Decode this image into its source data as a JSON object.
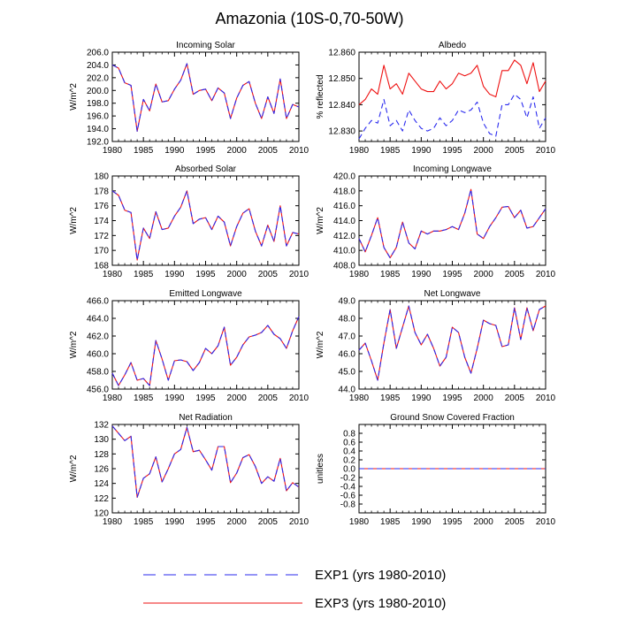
{
  "figure": {
    "title": "Amazonia (10S-0,70-50W)",
    "legend": [
      {
        "label": "EXP1 (yrs 1980-2010)",
        "color": "#2a2aee",
        "style": "dashed"
      },
      {
        "label": "EXP3 (yrs 1980-2010)",
        "color": "#ee1111",
        "style": "solid"
      }
    ]
  },
  "chart_data": [
    {
      "type": "line",
      "title": "Incoming Solar",
      "ylabel": "W/m^2",
      "xlim": [
        1980,
        2010
      ],
      "ylim": [
        192,
        206
      ],
      "yticks": [
        "192.0",
        "194.0",
        "196.0",
        "198.0",
        "200.0",
        "202.0",
        "204.0",
        "206.0"
      ],
      "xticks": [
        "1980",
        "1985",
        "1990",
        "1995",
        "2000",
        "2005",
        "2010"
      ],
      "series": [
        {
          "name": "EXP1",
          "values": [
            204.0,
            203.5,
            201.2,
            200.8,
            193.6,
            198.6,
            196.8,
            201.0,
            198.2,
            198.4,
            200.2,
            201.6,
            204.2,
            199.4,
            200.0,
            200.2,
            198.4,
            200.4,
            199.6,
            195.6,
            198.8,
            200.8,
            201.4,
            198.0,
            195.6,
            199.0,
            196.4,
            201.8,
            195.6,
            197.8,
            197.4
          ]
        },
        {
          "name": "EXP3",
          "values": [
            204.0,
            203.5,
            201.2,
            200.8,
            193.6,
            198.6,
            196.8,
            201.0,
            198.2,
            198.4,
            200.2,
            201.6,
            204.2,
            199.4,
            200.0,
            200.2,
            198.4,
            200.4,
            199.6,
            195.6,
            198.8,
            200.8,
            201.4,
            198.0,
            195.6,
            199.0,
            196.4,
            201.8,
            195.6,
            197.8,
            197.4
          ]
        }
      ]
    },
    {
      "type": "line",
      "title": "Albedo",
      "ylabel": "% reflected",
      "xlim": [
        1980,
        2010
      ],
      "ylim": [
        12.826,
        12.86
      ],
      "yticks": [
        "12.830",
        "12.840",
        "12.850",
        "12.860"
      ],
      "xticks": [
        "1980",
        "1985",
        "1990",
        "1995",
        "2000",
        "2005",
        "2010"
      ],
      "series": [
        {
          "name": "EXP1",
          "values": [
            12.827,
            12.831,
            12.834,
            12.833,
            12.842,
            12.832,
            12.834,
            12.83,
            12.838,
            12.834,
            12.831,
            12.83,
            12.831,
            12.835,
            12.832,
            12.834,
            12.838,
            12.837,
            12.838,
            12.841,
            12.833,
            12.829,
            12.828,
            12.84,
            12.84,
            12.844,
            12.842,
            12.835,
            12.843,
            12.831,
            12.835
          ]
        },
        {
          "name": "EXP3",
          "values": [
            12.84,
            12.842,
            12.846,
            12.844,
            12.855,
            12.846,
            12.848,
            12.844,
            12.852,
            12.849,
            12.846,
            12.845,
            12.845,
            12.849,
            12.846,
            12.848,
            12.852,
            12.851,
            12.852,
            12.855,
            12.847,
            12.844,
            12.843,
            12.853,
            12.853,
            12.857,
            12.855,
            12.848,
            12.856,
            12.845,
            12.849
          ]
        }
      ]
    },
    {
      "type": "line",
      "title": "Absorbed Solar",
      "ylabel": "W/m^2",
      "xlim": [
        1980,
        2010
      ],
      "ylim": [
        168,
        180
      ],
      "yticks": [
        "168",
        "170",
        "172",
        "174",
        "176",
        "178",
        "180"
      ],
      "xticks": [
        "1980",
        "1985",
        "1990",
        "1995",
        "2000",
        "2005",
        "2010"
      ],
      "series": [
        {
          "name": "EXP1",
          "values": [
            178.0,
            177.4,
            175.4,
            175.1,
            168.7,
            173.0,
            171.6,
            175.2,
            172.8,
            173.0,
            174.6,
            175.8,
            178.0,
            173.6,
            174.2,
            174.4,
            172.8,
            174.6,
            173.8,
            170.6,
            173.2,
            175.0,
            175.6,
            172.6,
            170.6,
            173.4,
            171.2,
            176.0,
            170.6,
            172.4,
            172.2
          ]
        },
        {
          "name": "EXP3",
          "values": [
            178.0,
            177.4,
            175.4,
            175.1,
            168.7,
            173.0,
            171.6,
            175.2,
            172.8,
            173.0,
            174.6,
            175.8,
            178.0,
            173.6,
            174.2,
            174.4,
            172.8,
            174.6,
            173.8,
            170.6,
            173.2,
            175.0,
            175.6,
            172.6,
            170.6,
            173.4,
            171.2,
            176.0,
            170.6,
            172.4,
            172.2
          ]
        }
      ]
    },
    {
      "type": "line",
      "title": "Incoming Longwave",
      "ylabel": "W/m^2",
      "xlim": [
        1980,
        2010
      ],
      "ylim": [
        408,
        420
      ],
      "yticks": [
        "408.0",
        "410.0",
        "412.0",
        "414.0",
        "416.0",
        "418.0",
        "420.0"
      ],
      "xticks": [
        "1980",
        "1985",
        "1990",
        "1995",
        "2000",
        "2005",
        "2010"
      ],
      "series": [
        {
          "name": "EXP1",
          "values": [
            411.6,
            409.8,
            412.0,
            414.4,
            410.4,
            409.0,
            410.4,
            413.8,
            411.0,
            410.2,
            412.6,
            412.2,
            412.6,
            412.6,
            412.8,
            413.2,
            412.8,
            415.0,
            418.2,
            412.2,
            411.6,
            413.2,
            414.4,
            415.8,
            415.9,
            414.4,
            415.4,
            413.0,
            413.2,
            414.4,
            415.6
          ]
        },
        {
          "name": "EXP3",
          "values": [
            411.6,
            409.8,
            412.0,
            414.4,
            410.4,
            409.0,
            410.4,
            413.8,
            411.0,
            410.2,
            412.6,
            412.2,
            412.6,
            412.6,
            412.8,
            413.2,
            412.8,
            415.0,
            418.2,
            412.2,
            411.6,
            413.2,
            414.4,
            415.8,
            415.9,
            414.4,
            415.4,
            413.0,
            413.2,
            414.4,
            415.6
          ]
        }
      ]
    },
    {
      "type": "line",
      "title": "Emitted Longwave",
      "ylabel": "W/m^2",
      "xlim": [
        1980,
        2010
      ],
      "ylim": [
        456,
        466
      ],
      "yticks": [
        "456.0",
        "458.0",
        "460.0",
        "462.0",
        "464.0",
        "466.0"
      ],
      "xticks": [
        "1980",
        "1985",
        "1990",
        "1995",
        "2000",
        "2005",
        "2010"
      ],
      "series": [
        {
          "name": "EXP1",
          "values": [
            457.8,
            456.4,
            457.6,
            459.0,
            457.0,
            457.2,
            456.4,
            461.5,
            459.4,
            457.0,
            459.2,
            459.3,
            459.1,
            458.1,
            459.0,
            460.6,
            460.0,
            460.9,
            463.0,
            458.7,
            459.6,
            461.0,
            461.9,
            462.1,
            462.4,
            463.2,
            462.2,
            461.7,
            460.6,
            462.6,
            464.2
          ]
        },
        {
          "name": "EXP3",
          "values": [
            457.8,
            456.4,
            457.6,
            459.0,
            457.0,
            457.2,
            456.4,
            461.5,
            459.4,
            457.0,
            459.2,
            459.3,
            459.1,
            458.1,
            459.0,
            460.6,
            460.0,
            460.9,
            463.0,
            458.7,
            459.6,
            461.0,
            461.9,
            462.1,
            462.4,
            463.2,
            462.2,
            461.7,
            460.6,
            462.6,
            464.2
          ]
        }
      ]
    },
    {
      "type": "line",
      "title": "Net Longwave",
      "ylabel": "W/m^2",
      "xlim": [
        1980,
        2010
      ],
      "ylim": [
        44,
        49
      ],
      "yticks": [
        "44.0",
        "45.0",
        "46.0",
        "47.0",
        "48.0",
        "49.0"
      ],
      "xticks": [
        "1980",
        "1985",
        "1990",
        "1995",
        "2000",
        "2005",
        "2010"
      ],
      "series": [
        {
          "name": "EXP1",
          "values": [
            46.2,
            46.6,
            45.6,
            44.5,
            46.6,
            48.5,
            46.3,
            47.5,
            48.7,
            47.2,
            46.5,
            47.1,
            46.3,
            45.3,
            45.8,
            47.5,
            47.2,
            45.8,
            44.9,
            46.3,
            47.9,
            47.7,
            47.6,
            46.4,
            46.5,
            48.6,
            46.8,
            48.6,
            47.3,
            48.5,
            48.7
          ]
        },
        {
          "name": "EXP3",
          "values": [
            46.2,
            46.6,
            45.6,
            44.5,
            46.6,
            48.5,
            46.3,
            47.5,
            48.7,
            47.2,
            46.5,
            47.1,
            46.3,
            45.3,
            45.8,
            47.5,
            47.2,
            45.8,
            44.9,
            46.3,
            47.9,
            47.7,
            47.6,
            46.4,
            46.5,
            48.6,
            46.8,
            48.6,
            47.3,
            48.5,
            48.7
          ]
        }
      ]
    },
    {
      "type": "line",
      "title": "Net Radiation",
      "ylabel": "W/m^2",
      "xlim": [
        1980,
        2010
      ],
      "ylim": [
        120,
        132
      ],
      "yticks": [
        "120",
        "122",
        "124",
        "126",
        "128",
        "130",
        "132"
      ],
      "xticks": [
        "1980",
        "1985",
        "1990",
        "1995",
        "2000",
        "2005",
        "2010"
      ],
      "series": [
        {
          "name": "EXP1",
          "values": [
            131.8,
            130.8,
            129.8,
            130.4,
            122.1,
            124.7,
            125.3,
            127.6,
            124.2,
            126.0,
            128.0,
            128.6,
            131.6,
            128.3,
            128.5,
            127.2,
            125.8,
            129.0,
            129.0,
            124.1,
            125.4,
            127.5,
            127.9,
            126.3,
            124.0,
            124.9,
            124.3,
            127.4,
            123.0,
            124.1,
            123.5
          ]
        },
        {
          "name": "EXP3",
          "values": [
            131.8,
            130.8,
            129.8,
            130.4,
            122.1,
            124.7,
            125.3,
            127.6,
            124.2,
            126.0,
            128.0,
            128.6,
            131.6,
            128.3,
            128.5,
            127.2,
            125.8,
            129.0,
            129.0,
            124.1,
            125.4,
            127.5,
            127.9,
            126.3,
            124.0,
            124.9,
            124.3,
            127.4,
            123.0,
            124.1,
            123.5
          ]
        }
      ]
    },
    {
      "type": "line",
      "title": "Ground Snow Covered Fraction",
      "ylabel": "unitless",
      "xlim": [
        1980,
        2010
      ],
      "ylim": [
        -1,
        1
      ],
      "yticks": [
        "-0.8",
        "-0.6",
        "-0.4",
        "-0.2",
        "0.0",
        "0.2",
        "0.4",
        "0.6",
        "0.8"
      ],
      "xticks": [
        "1980",
        "1985",
        "1990",
        "1995",
        "2000",
        "2005",
        "2010"
      ],
      "series": [
        {
          "name": "EXP1",
          "values": [
            0,
            0,
            0,
            0,
            0,
            0,
            0,
            0,
            0,
            0,
            0,
            0,
            0,
            0,
            0,
            0,
            0,
            0,
            0,
            0,
            0,
            0,
            0,
            0,
            0,
            0,
            0,
            0,
            0,
            0,
            0
          ]
        },
        {
          "name": "EXP3",
          "values": [
            0,
            0,
            0,
            0,
            0,
            0,
            0,
            0,
            0,
            0,
            0,
            0,
            0,
            0,
            0,
            0,
            0,
            0,
            0,
            0,
            0,
            0,
            0,
            0,
            0,
            0,
            0,
            0,
            0,
            0,
            0
          ]
        }
      ]
    }
  ]
}
